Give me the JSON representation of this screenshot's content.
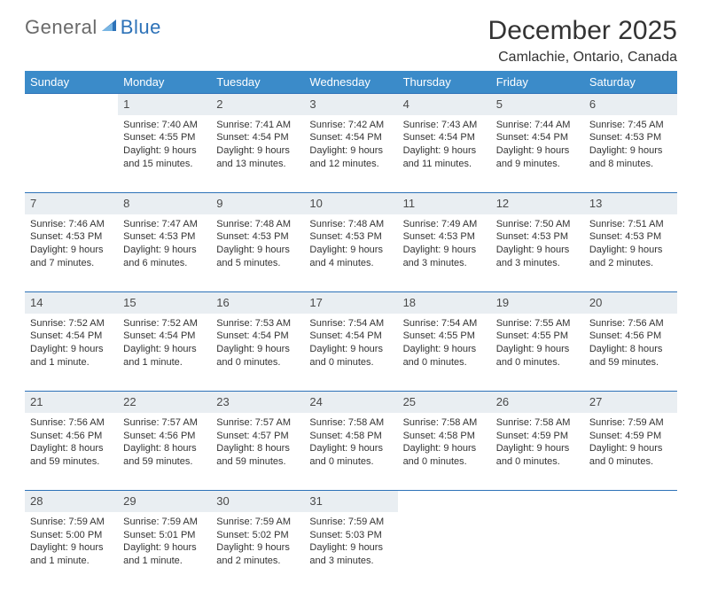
{
  "logo": {
    "part1": "General",
    "part2": "Blue"
  },
  "title": "December 2025",
  "location": "Camlachie, Ontario, Canada",
  "colors": {
    "header_bg": "#3b8bc9",
    "header_text": "#ffffff",
    "daynum_bg": "#e9eef2",
    "rule": "#2d72b8",
    "body_text": "#333333",
    "logo_gray": "#6a6a6a",
    "logo_blue": "#2d72b8"
  },
  "dayHeaders": [
    "Sunday",
    "Monday",
    "Tuesday",
    "Wednesday",
    "Thursday",
    "Friday",
    "Saturday"
  ],
  "weeks": [
    {
      "nums": [
        "",
        "1",
        "2",
        "3",
        "4",
        "5",
        "6"
      ],
      "cells": [
        "",
        "Sunrise: 7:40 AM\nSunset: 4:55 PM\nDaylight: 9 hours and 15 minutes.",
        "Sunrise: 7:41 AM\nSunset: 4:54 PM\nDaylight: 9 hours and 13 minutes.",
        "Sunrise: 7:42 AM\nSunset: 4:54 PM\nDaylight: 9 hours and 12 minutes.",
        "Sunrise: 7:43 AM\nSunset: 4:54 PM\nDaylight: 9 hours and 11 minutes.",
        "Sunrise: 7:44 AM\nSunset: 4:54 PM\nDaylight: 9 hours and 9 minutes.",
        "Sunrise: 7:45 AM\nSunset: 4:53 PM\nDaylight: 9 hours and 8 minutes."
      ]
    },
    {
      "nums": [
        "7",
        "8",
        "9",
        "10",
        "11",
        "12",
        "13"
      ],
      "cells": [
        "Sunrise: 7:46 AM\nSunset: 4:53 PM\nDaylight: 9 hours and 7 minutes.",
        "Sunrise: 7:47 AM\nSunset: 4:53 PM\nDaylight: 9 hours and 6 minutes.",
        "Sunrise: 7:48 AM\nSunset: 4:53 PM\nDaylight: 9 hours and 5 minutes.",
        "Sunrise: 7:48 AM\nSunset: 4:53 PM\nDaylight: 9 hours and 4 minutes.",
        "Sunrise: 7:49 AM\nSunset: 4:53 PM\nDaylight: 9 hours and 3 minutes.",
        "Sunrise: 7:50 AM\nSunset: 4:53 PM\nDaylight: 9 hours and 3 minutes.",
        "Sunrise: 7:51 AM\nSunset: 4:53 PM\nDaylight: 9 hours and 2 minutes."
      ]
    },
    {
      "nums": [
        "14",
        "15",
        "16",
        "17",
        "18",
        "19",
        "20"
      ],
      "cells": [
        "Sunrise: 7:52 AM\nSunset: 4:54 PM\nDaylight: 9 hours and 1 minute.",
        "Sunrise: 7:52 AM\nSunset: 4:54 PM\nDaylight: 9 hours and 1 minute.",
        "Sunrise: 7:53 AM\nSunset: 4:54 PM\nDaylight: 9 hours and 0 minutes.",
        "Sunrise: 7:54 AM\nSunset: 4:54 PM\nDaylight: 9 hours and 0 minutes.",
        "Sunrise: 7:54 AM\nSunset: 4:55 PM\nDaylight: 9 hours and 0 minutes.",
        "Sunrise: 7:55 AM\nSunset: 4:55 PM\nDaylight: 9 hours and 0 minutes.",
        "Sunrise: 7:56 AM\nSunset: 4:56 PM\nDaylight: 8 hours and 59 minutes."
      ]
    },
    {
      "nums": [
        "21",
        "22",
        "23",
        "24",
        "25",
        "26",
        "27"
      ],
      "cells": [
        "Sunrise: 7:56 AM\nSunset: 4:56 PM\nDaylight: 8 hours and 59 minutes.",
        "Sunrise: 7:57 AM\nSunset: 4:56 PM\nDaylight: 8 hours and 59 minutes.",
        "Sunrise: 7:57 AM\nSunset: 4:57 PM\nDaylight: 8 hours and 59 minutes.",
        "Sunrise: 7:58 AM\nSunset: 4:58 PM\nDaylight: 9 hours and 0 minutes.",
        "Sunrise: 7:58 AM\nSunset: 4:58 PM\nDaylight: 9 hours and 0 minutes.",
        "Sunrise: 7:58 AM\nSunset: 4:59 PM\nDaylight: 9 hours and 0 minutes.",
        "Sunrise: 7:59 AM\nSunset: 4:59 PM\nDaylight: 9 hours and 0 minutes."
      ]
    },
    {
      "nums": [
        "28",
        "29",
        "30",
        "31",
        "",
        "",
        ""
      ],
      "cells": [
        "Sunrise: 7:59 AM\nSunset: 5:00 PM\nDaylight: 9 hours and 1 minute.",
        "Sunrise: 7:59 AM\nSunset: 5:01 PM\nDaylight: 9 hours and 1 minute.",
        "Sunrise: 7:59 AM\nSunset: 5:02 PM\nDaylight: 9 hours and 2 minutes.",
        "Sunrise: 7:59 AM\nSunset: 5:03 PM\nDaylight: 9 hours and 3 minutes.",
        "",
        "",
        ""
      ]
    }
  ]
}
